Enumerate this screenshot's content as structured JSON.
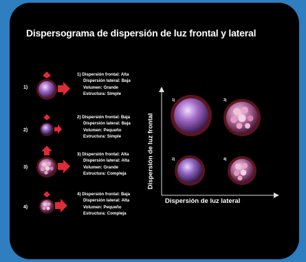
{
  "title": "Dispersograma de dispersión de luz frontal y lateral",
  "cells": [
    {
      "number": "1)",
      "lines": [
        "1) Dispersión frontal: Alta",
        "Dispersión lateral: Baja",
        "Volumen: Grande",
        "Estructura: Simple"
      ]
    },
    {
      "number": "2)",
      "lines": [
        "2) Dispersión frontal: Baja",
        "Dispersión lateral: Baja",
        "Volumen: Pequeño",
        "Estructura: Simple"
      ]
    },
    {
      "number": "3)",
      "lines": [
        "3) Dispersión frontal: Alta",
        "Dispersión lateral: Alta",
        "Volumen: Grande",
        "Estructura: Compleja"
      ]
    },
    {
      "number": "4)",
      "lines": [
        "4) Dispersión frontal: Baja",
        "Dispersión lateral: Alta",
        "Volumen: Pequeño",
        "Estructura: Compleja"
      ]
    }
  ],
  "plot": {
    "ylabel": "Dispersión de luz frontal",
    "xlabel": "Dispersión de luz lateral",
    "quadrants": [
      "1)",
      "3)",
      "2)",
      "4)"
    ]
  },
  "colors": {
    "background": "#2f7ec0",
    "card": "#000000",
    "arrow": "#e02a35",
    "cell": "#b07ad0",
    "halo": "#c23040"
  }
}
